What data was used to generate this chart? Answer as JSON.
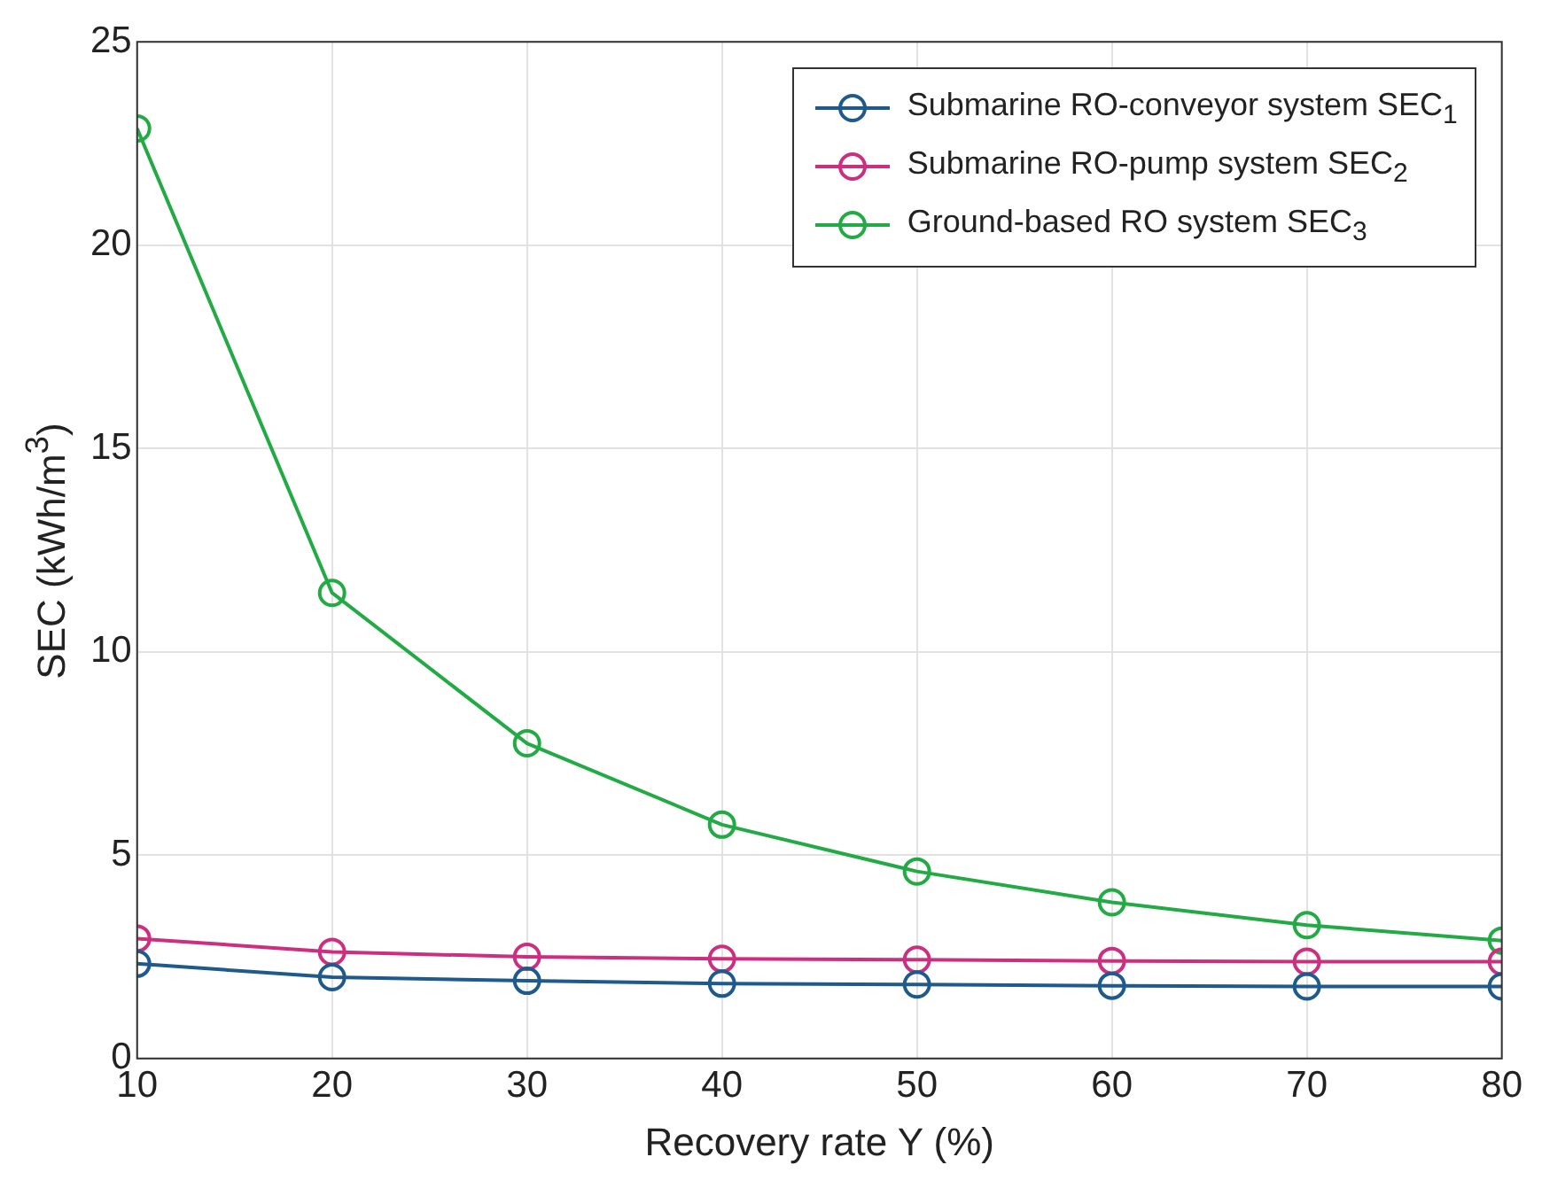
{
  "chart_data": {
    "type": "line",
    "xlabel": "Recovery rate Y (%)",
    "ylabel": "SEC (kWh/m$^{3}$)",
    "x": [
      10,
      20,
      30,
      40,
      50,
      60,
      70,
      80
    ],
    "series": [
      {
        "name": "Submarine RO-conveyor system SEC$_{1}$",
        "color": "#1f5a8c",
        "values": [
          2.33,
          2.0,
          1.91,
          1.84,
          1.82,
          1.79,
          1.77,
          1.77
        ]
      },
      {
        "name": "Submarine RO-pump system SEC$_{2}$",
        "color": "#cc2f7f",
        "values": [
          2.95,
          2.62,
          2.5,
          2.45,
          2.43,
          2.4,
          2.38,
          2.38
        ]
      },
      {
        "name": "Ground-based RO system SEC$_{3}$",
        "color": "#22aa44",
        "values": [
          22.87,
          11.45,
          7.75,
          5.75,
          4.6,
          3.84,
          3.28,
          2.9
        ]
      }
    ],
    "xlim": [
      10,
      80
    ],
    "xticks": [
      10,
      20,
      30,
      40,
      50,
      60,
      70,
      80
    ],
    "ylim": [
      0,
      25
    ],
    "yticks": [
      0,
      5,
      10,
      15,
      20,
      25
    ],
    "grid": true,
    "legend": "top right",
    "marker": "circle",
    "line_style": "solid"
  }
}
